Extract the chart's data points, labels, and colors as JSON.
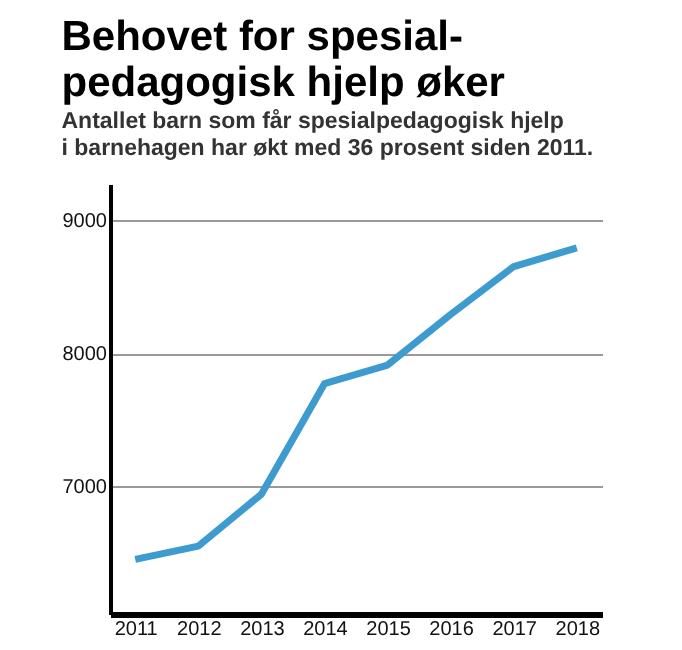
{
  "chart_data": {
    "type": "line",
    "title": "Behovet for spesial-\npedagogisk hjelp øker",
    "subtitle": "Antallet barn som får spesialpedagogisk hjelp\ni barnehagen har økt med 36 prosent siden 2011.",
    "categories": [
      "2011",
      "2012",
      "2013",
      "2014",
      "2015",
      "2016",
      "2017",
      "2018"
    ],
    "series": [
      {
        "color": "#3e9bd0",
        "values": [
          6450,
          6550,
          6940,
          7770,
          7910,
          8290,
          8650,
          8790
        ]
      }
    ],
    "ylim": [
      6040,
      9270
    ],
    "yticks": [
      7000,
      8000,
      9000
    ],
    "grid": "y",
    "marker": "none",
    "line_style": "solid"
  }
}
